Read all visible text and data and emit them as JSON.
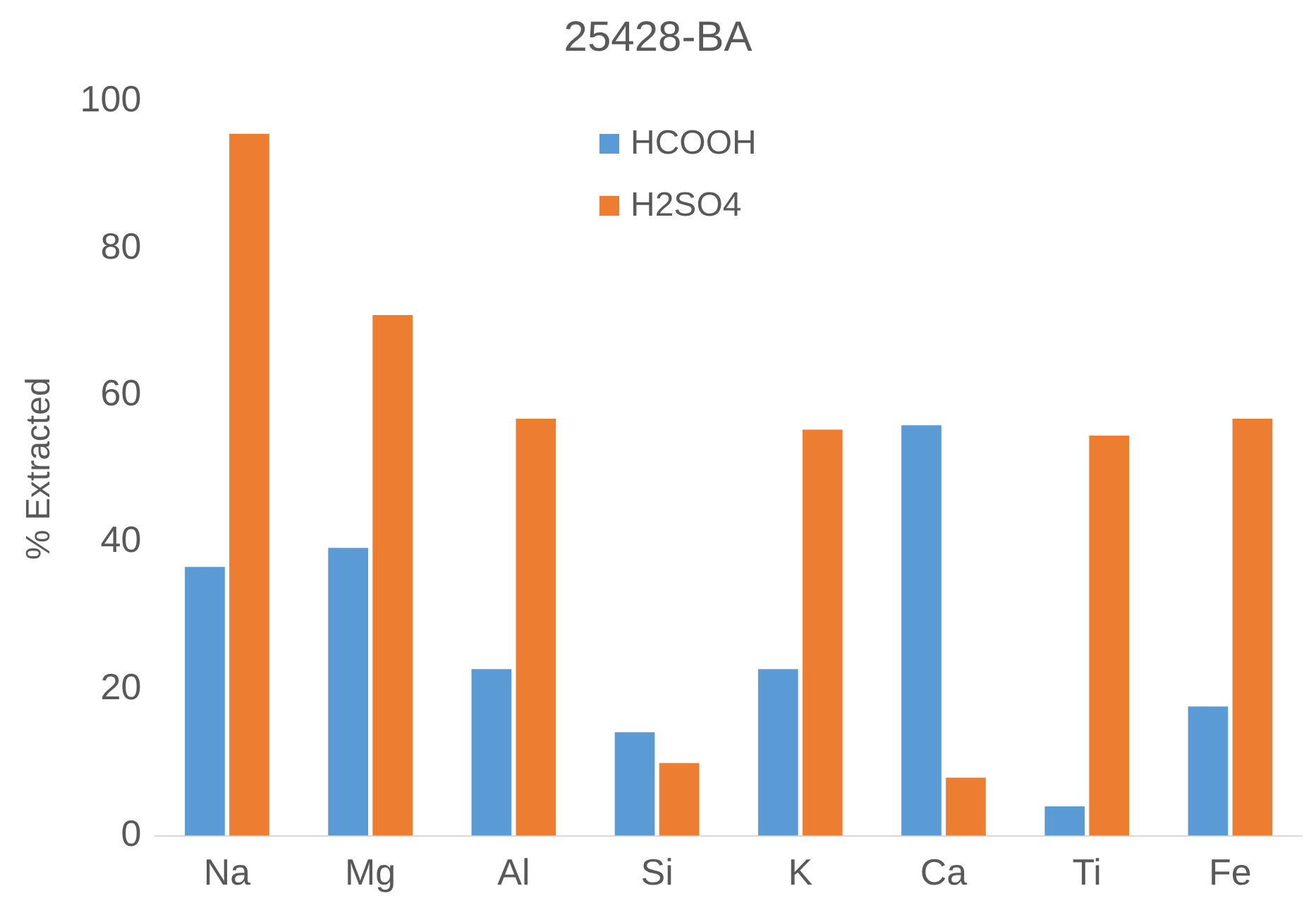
{
  "chart_data": {
    "type": "bar",
    "title": "25428-BA",
    "ylabel": "% Extracted",
    "categories": [
      "Na",
      "Mg",
      "Al",
      "Si",
      "K",
      "Ca",
      "Ti",
      "Fe"
    ],
    "series": [
      {
        "name": "HCOOH",
        "color": "#5b9bd5",
        "values": [
          36.6,
          39.2,
          22.7,
          14.1,
          22.7,
          55.9,
          4.0,
          17.6
        ]
      },
      {
        "name": "H2SO4",
        "color": "#ed7d31",
        "values": [
          95.6,
          70.9,
          56.8,
          9.9,
          55.3,
          7.9,
          54.5,
          56.8
        ]
      }
    ],
    "ylim": [
      0,
      100
    ],
    "yticks": [
      0,
      20,
      40,
      60,
      80,
      100
    ],
    "grid": false,
    "legend": "top"
  }
}
